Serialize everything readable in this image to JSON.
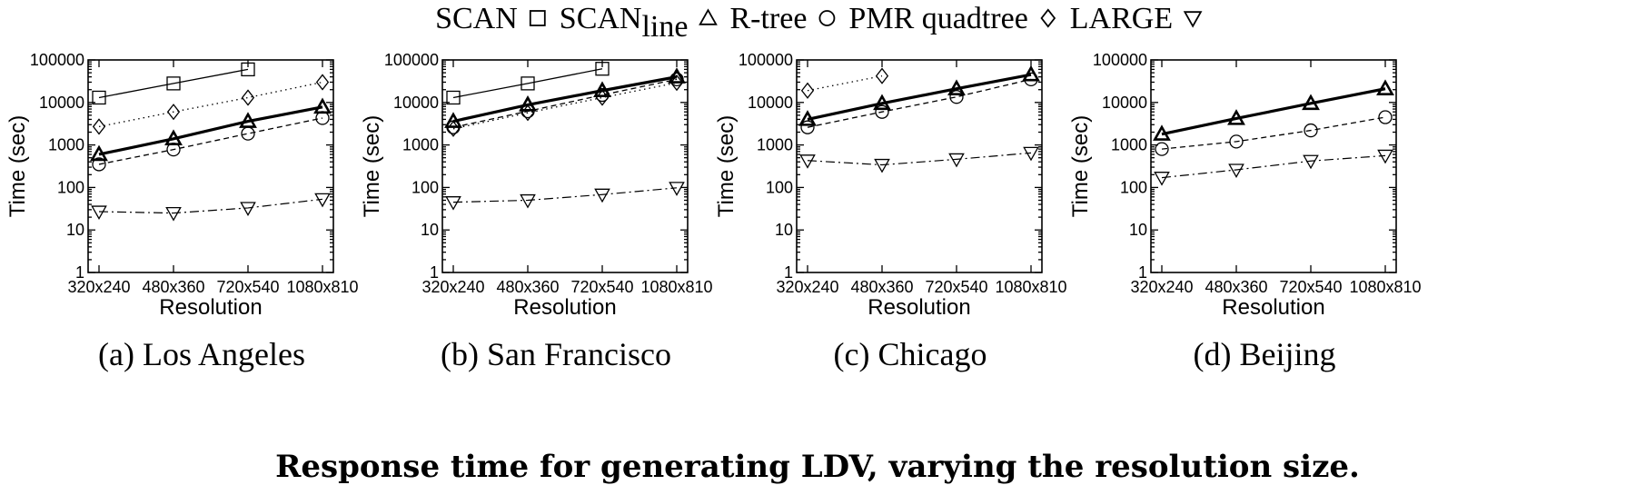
{
  "legend": {
    "items": [
      {
        "name": "SCAN",
        "sub": "",
        "symbol": "square"
      },
      {
        "name": "SCAN",
        "sub": "line",
        "symbol": "triangle-up"
      },
      {
        "name": "R-tree",
        "sub": "",
        "symbol": "circle"
      },
      {
        "name": "PMR quadtree",
        "sub": "",
        "symbol": "diamond"
      },
      {
        "name": "LARGE",
        "sub": "",
        "symbol": "triangle-down"
      }
    ]
  },
  "figure_title": "Response time for generating LDV, varying the resolution size.",
  "chart_data": [
    {
      "type": "line",
      "caption": "(a) Los Angeles",
      "categories": [
        "320x240",
        "480x360",
        "720x540",
        "1080x810"
      ],
      "xlabel": "Resolution",
      "ylabel": "Time (sec)",
      "yscale": "log",
      "ylim": [
        1,
        100000
      ],
      "yticks": [
        "1",
        "10",
        "100",
        "1000",
        "10000",
        "100000"
      ],
      "series": [
        {
          "key": "scan",
          "values": [
            13000,
            28000,
            60000,
            null
          ]
        },
        {
          "key": "scanline",
          "values": [
            600,
            1400,
            3600,
            7800
          ]
        },
        {
          "key": "rtree",
          "values": [
            350,
            780,
            1850,
            4300
          ]
        },
        {
          "key": "pmr",
          "values": [
            2700,
            6000,
            13000,
            30000
          ]
        },
        {
          "key": "large",
          "values": [
            27,
            25,
            33,
            53
          ]
        }
      ]
    },
    {
      "type": "line",
      "caption": "(b) San Francisco",
      "categories": [
        "320x240",
        "480x360",
        "720x540",
        "1080x810"
      ],
      "xlabel": "Resolution",
      "ylabel": "Time (sec)",
      "yscale": "log",
      "ylim": [
        1,
        100000
      ],
      "yticks": [
        "1",
        "10",
        "100",
        "1000",
        "10000",
        "100000"
      ],
      "series": [
        {
          "key": "scan",
          "values": [
            13000,
            28000,
            62000,
            null
          ]
        },
        {
          "key": "scanline",
          "values": [
            3600,
            8800,
            19000,
            40000
          ]
        },
        {
          "key": "rtree",
          "values": [
            2600,
            6200,
            15000,
            35000
          ]
        },
        {
          "key": "pmr",
          "values": [
            2400,
            5700,
            13000,
            29000
          ]
        },
        {
          "key": "large",
          "values": [
            45,
            50,
            68,
            98
          ]
        }
      ]
    },
    {
      "type": "line",
      "caption": "(c) Chicago",
      "categories": [
        "320x240",
        "480x360",
        "720x540",
        "1080x810"
      ],
      "xlabel": "Resolution",
      "ylabel": "Time (sec)",
      "yscale": "log",
      "ylim": [
        1,
        100000
      ],
      "yticks": [
        "1",
        "10",
        "100",
        "1000",
        "10000",
        "100000"
      ],
      "series": [
        {
          "key": "scan",
          "values": [
            null,
            null,
            null,
            null
          ]
        },
        {
          "key": "scanline",
          "values": [
            4000,
            9500,
            21000,
            45000
          ]
        },
        {
          "key": "rtree",
          "values": [
            2600,
            6000,
            13500,
            35000
          ]
        },
        {
          "key": "pmr",
          "values": [
            19000,
            42000,
            null,
            null
          ]
        },
        {
          "key": "large",
          "values": [
            430,
            340,
            460,
            650
          ]
        }
      ]
    },
    {
      "type": "line",
      "caption": "(d) Beijing",
      "categories": [
        "320x240",
        "480x360",
        "720x540",
        "1080x810"
      ],
      "xlabel": "Resolution",
      "ylabel": "Time (sec)",
      "yscale": "log",
      "ylim": [
        1,
        100000
      ],
      "yticks": [
        "1",
        "10",
        "100",
        "1000",
        "10000",
        "100000"
      ],
      "series": [
        {
          "key": "scan",
          "values": [
            null,
            null,
            null,
            null
          ]
        },
        {
          "key": "scanline",
          "values": [
            1800,
            4200,
            9500,
            21000
          ]
        },
        {
          "key": "rtree",
          "values": [
            800,
            1200,
            2200,
            4500
          ]
        },
        {
          "key": "pmr",
          "values": [
            null,
            null,
            null,
            null
          ]
        },
        {
          "key": "large",
          "values": [
            170,
            260,
            420,
            560
          ]
        }
      ]
    }
  ]
}
